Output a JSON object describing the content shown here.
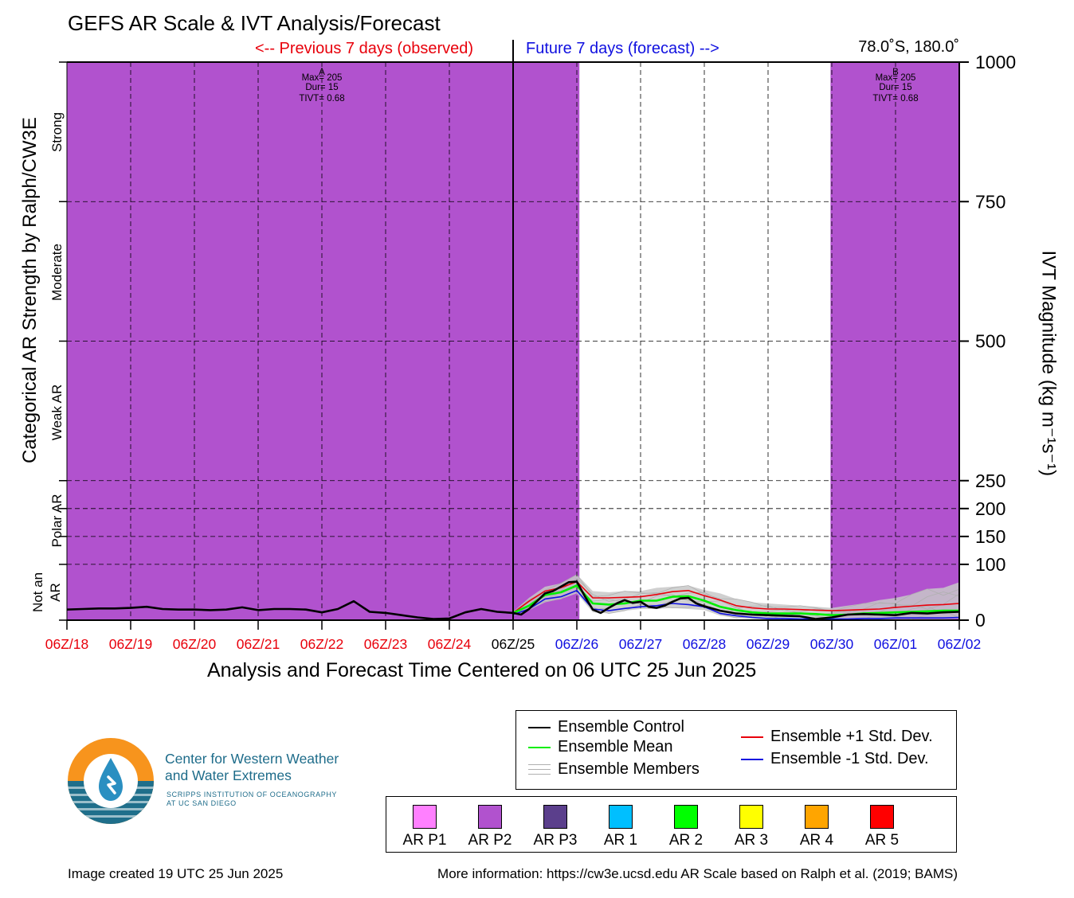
{
  "header": {
    "title": "GEFS AR Scale & IVT Analysis/Forecast",
    "previous_label": "<-- Previous 7 days (observed)",
    "future_label": "Future 7 days (forecast) -->",
    "location": "78.0˚S, 180.0˚"
  },
  "axes": {
    "xlabel": "Analysis and Forecast Time Centered on 06 UTC 25 Jun 2025",
    "ylabel_left": "Categorical AR Strength by Ralph/CW3E",
    "ylabel_right": "IVT Magnitude (kg m⁻¹s⁻¹)"
  },
  "categories": {
    "strong": "Strong",
    "moderate": "Moderate",
    "weak": "Weak AR",
    "polar": "Polar AR",
    "not_ar_1": "Not an",
    "not_ar_2": "AR"
  },
  "annotations": {
    "a": {
      "letter": "A",
      "max": "Max= 205",
      "dur": "Dur= 15",
      "tivt": "TIVT= 0.68"
    },
    "b": {
      "letter": "B",
      "max": "Max= 205",
      "dur": "Dur= 15",
      "tivt": "TIVT= 0.68"
    }
  },
  "legend": {
    "control": "Ensemble Control",
    "mean": "Ensemble Mean",
    "members": "Ensemble Members",
    "plus": "Ensemble +1 Std. Dev.",
    "minus": "Ensemble -1 Std. Dev."
  },
  "scale_legend": [
    {
      "label": "AR P1",
      "color": "#ff80ff"
    },
    {
      "label": "AR P2",
      "color": "#b152ce"
    },
    {
      "label": "AR P3",
      "color": "#5b3f8c"
    },
    {
      "label": "AR 1",
      "color": "#00bfff"
    },
    {
      "label": "AR 2",
      "color": "#00ff00"
    },
    {
      "label": "AR 3",
      "color": "#ffff00"
    },
    {
      "label": "AR 4",
      "color": "#ffa500"
    },
    {
      "label": "AR 5",
      "color": "#ff0000"
    }
  ],
  "logo": {
    "name_line1": "Center for Western Weather",
    "name_line2": "and Water Extremes",
    "sub_line1": "SCRIPPS INSTITUTION OF OCEANOGRAPHY",
    "sub_line2": "AT UC SAN DIEGO"
  },
  "footer": {
    "created": "Image created 19 UTC 25 Jun 2025",
    "info": "More information: https://cw3e.ucsd.edu AR Scale based on Ralph et al. (2019; BAMS)"
  },
  "colors": {
    "ar_p2": "#b152ce",
    "previous": "#e8000b",
    "future": "#1010e0",
    "control": "#000000",
    "mean": "#00ee00",
    "plus": "#e8000b",
    "minus": "#1010e0",
    "members": "#b0b0b0"
  },
  "chart_data": {
    "type": "line",
    "title": "GEFS AR Scale & IVT Analysis/Forecast",
    "xlabel": "Analysis and Forecast Time Centered on 06 UTC 25 Jun 2025",
    "ylabel": "IVT Magnitude (kg m⁻¹s⁻¹)",
    "x_unit": "days relative to 06Z/18",
    "xlim": [
      0,
      14
    ],
    "ylim": [
      0,
      1000
    ],
    "y_ticks": [
      0,
      100,
      150,
      200,
      250,
      500,
      750,
      1000
    ],
    "y_tick_labels": [
      "0",
      "100",
      "150",
      "200",
      "250",
      "500",
      "750",
      "1000"
    ],
    "x_ticks": [
      {
        "label": "06Z/18",
        "kind": "past"
      },
      {
        "label": "06Z/19",
        "kind": "past"
      },
      {
        "label": "06Z/20",
        "kind": "past"
      },
      {
        "label": "06Z/21",
        "kind": "past"
      },
      {
        "label": "06Z/22",
        "kind": "past"
      },
      {
        "label": "06Z/23",
        "kind": "past"
      },
      {
        "label": "06Z/24",
        "kind": "past"
      },
      {
        "label": "06Z/25",
        "kind": "now"
      },
      {
        "label": "06Z/26",
        "kind": "future"
      },
      {
        "label": "06Z/27",
        "kind": "future"
      },
      {
        "label": "06Z/28",
        "kind": "future"
      },
      {
        "label": "06Z/29",
        "kind": "future"
      },
      {
        "label": "06Z/30",
        "kind": "future"
      },
      {
        "label": "06Z/01",
        "kind": "future"
      },
      {
        "label": "06Z/02",
        "kind": "future"
      }
    ],
    "category_thresholds": [
      100,
      150,
      200,
      250,
      500,
      750
    ],
    "ar_shading": [
      {
        "category": "AR P2",
        "x": [
          0,
          8.04
        ]
      },
      {
        "category": "AR P2",
        "x": [
          11.98,
          14
        ]
      }
    ],
    "series": [
      {
        "name": "Ensemble Control",
        "color": "#000000",
        "x": [
          0,
          0.25,
          0.5,
          0.75,
          1,
          1.25,
          1.5,
          1.75,
          2,
          2.25,
          2.5,
          2.75,
          3,
          3.25,
          3.5,
          3.75,
          4,
          4.25,
          4.5,
          4.75,
          5,
          5.25,
          5.5,
          5.75,
          6,
          6.25,
          6.5,
          6.75,
          7,
          7.125,
          7.25,
          7.375,
          7.5,
          7.625,
          7.75,
          7.875,
          8,
          8.125,
          8.25,
          8.375,
          8.5,
          8.625,
          8.75,
          8.875,
          9,
          9.125,
          9.25,
          9.375,
          9.5,
          9.625,
          9.75,
          9.875,
          10,
          10.25,
          10.5,
          10.75,
          11,
          11.25,
          11.5,
          11.75,
          12,
          12.25,
          12.5,
          12.75,
          13,
          13.25,
          13.5,
          13.75,
          14
        ],
        "y": [
          19,
          20,
          21,
          21,
          22,
          24,
          20,
          19,
          19,
          18,
          19,
          23,
          18,
          20,
          20,
          19,
          14,
          20,
          34,
          15,
          13,
          9,
          5,
          2,
          3,
          14,
          20,
          15,
          13,
          10,
          20,
          34,
          48,
          52,
          60,
          68,
          69,
          43,
          19,
          13,
          22,
          30,
          36,
          31,
          33,
          24,
          22,
          26,
          33,
          39,
          40,
          30,
          25,
          17,
          12,
          10,
          9,
          8,
          7,
          2,
          5,
          10,
          11,
          10,
          9,
          13,
          12,
          14,
          15
        ]
      },
      {
        "name": "Ensemble Mean",
        "color": "#00ee00",
        "x": [
          7,
          7.25,
          7.5,
          7.75,
          8,
          8.25,
          8.5,
          8.75,
          9,
          9.25,
          9.5,
          9.75,
          10,
          10.25,
          10.5,
          10.75,
          11,
          11.25,
          11.5,
          11.75,
          12,
          12.25,
          12.5,
          12.75,
          13,
          13.25,
          13.5,
          13.75,
          14
        ],
        "y": [
          13,
          26,
          45,
          50,
          62,
          30,
          28,
          30,
          35,
          35,
          42,
          43,
          35,
          24,
          18,
          14,
          12,
          12,
          12,
          11,
          9,
          10,
          12,
          13,
          14,
          15,
          16,
          17,
          17
        ]
      },
      {
        "name": "Ensemble +1 Std. Dev.",
        "color": "#e8000b",
        "x": [
          7,
          7.25,
          7.5,
          7.75,
          8,
          8.25,
          8.5,
          8.75,
          9,
          9.25,
          9.5,
          9.75,
          10,
          10.25,
          10.5,
          10.75,
          11,
          11.25,
          11.5,
          11.75,
          12,
          12.25,
          12.5,
          12.75,
          13,
          13.25,
          13.5,
          13.75,
          14
        ],
        "y": [
          13,
          34,
          52,
          58,
          69,
          40,
          40,
          41,
          42,
          46,
          51,
          53,
          44,
          36,
          26,
          22,
          20,
          20,
          19,
          18,
          17,
          18,
          19,
          20,
          23,
          25,
          27,
          28,
          30
        ]
      },
      {
        "name": "Ensemble -1 Std. Dev.",
        "color": "#1010e0",
        "x": [
          7,
          7.25,
          7.5,
          7.75,
          8,
          8.25,
          8.5,
          8.75,
          9,
          9.25,
          9.5,
          9.75,
          10,
          10.25,
          10.5,
          10.75,
          11,
          11.25,
          11.5,
          11.75,
          12,
          12.25,
          12.5,
          12.75,
          13,
          13.25,
          13.5,
          13.75,
          14
        ],
        "y": [
          10,
          20,
          38,
          42,
          53,
          20,
          17,
          21,
          24,
          26,
          30,
          28,
          24,
          12,
          8,
          5,
          3,
          3,
          2,
          2,
          2,
          2,
          3,
          3,
          4,
          4,
          4,
          4,
          5
        ]
      },
      {
        "name": "Ensemble Members",
        "color": "#b0b0b0",
        "x": [
          7,
          7.25,
          7.5,
          7.75,
          8,
          8.25,
          8.5,
          8.75,
          9,
          9.25,
          9.5,
          9.75,
          10,
          10.25,
          10.5,
          10.75,
          11,
          11.25,
          11.5,
          11.75,
          12,
          12.25,
          12.5,
          12.75,
          13,
          13.25,
          13.5,
          13.75,
          14
        ],
        "y_min": [
          8,
          18,
          32,
          38,
          48,
          14,
          12,
          17,
          20,
          20,
          22,
          20,
          18,
          8,
          4,
          2,
          1,
          1,
          0,
          0,
          0,
          0,
          1,
          1,
          2,
          2,
          2,
          2,
          3
        ],
        "y_max": [
          15,
          40,
          60,
          66,
          82,
          52,
          50,
          52,
          52,
          58,
          60,
          62,
          54,
          48,
          38,
          32,
          30,
          28,
          26,
          24,
          22,
          26,
          30,
          36,
          40,
          46,
          56,
          58,
          68
        ]
      }
    ]
  }
}
